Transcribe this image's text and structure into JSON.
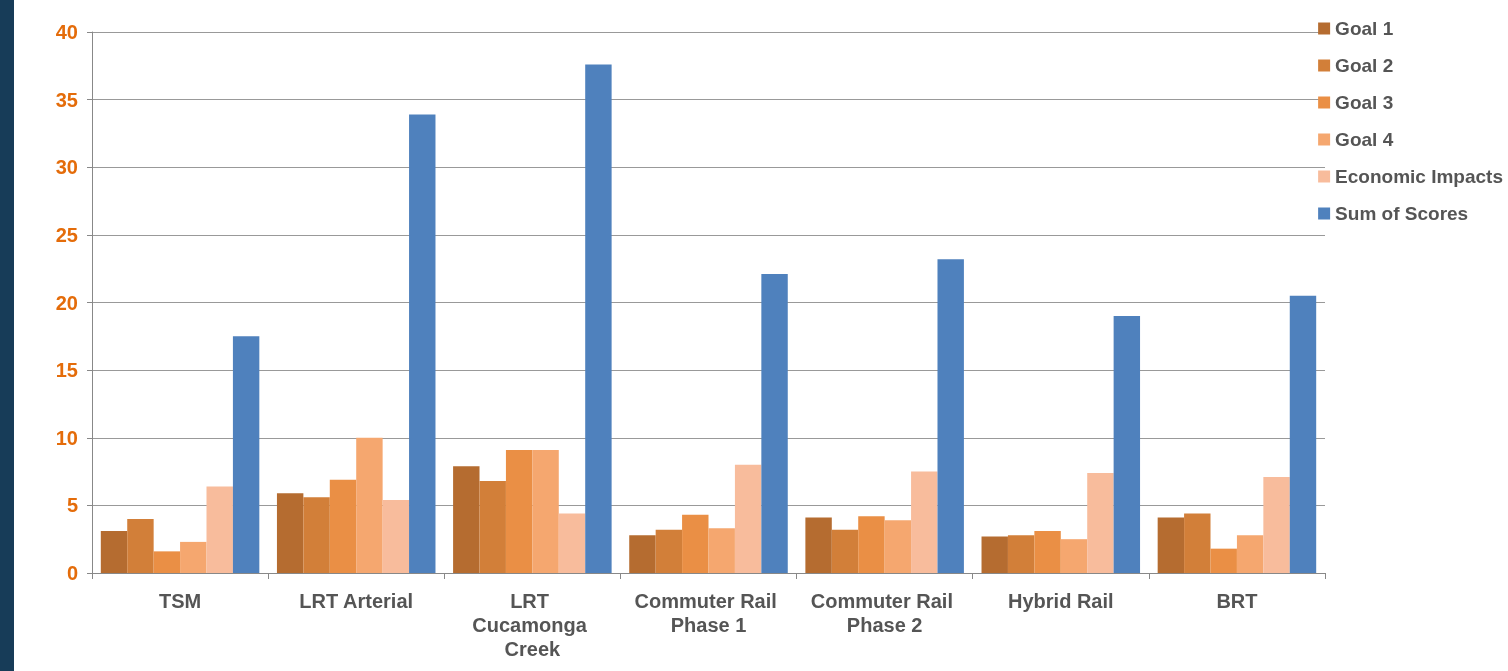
{
  "chart_data": {
    "type": "bar",
    "categories": [
      "TSM",
      "LRT Arterial",
      "LRT Cucamonga Creek",
      "Commuter Rail Phase 1",
      "Commuter Rail Phase 2",
      "Hybrid Rail",
      "BRT"
    ],
    "series": [
      {
        "name": "Goal 1",
        "color": "#b56c30",
        "values": [
          3.1,
          5.9,
          7.9,
          2.8,
          4.1,
          2.7,
          4.1
        ]
      },
      {
        "name": "Goal 2",
        "color": "#d27f39",
        "values": [
          4.0,
          5.6,
          6.8,
          3.2,
          3.2,
          2.8,
          4.4
        ]
      },
      {
        "name": "Goal 3",
        "color": "#ea8f45",
        "values": [
          1.6,
          6.9,
          9.1,
          4.3,
          4.2,
          3.1,
          1.8
        ]
      },
      {
        "name": "Goal 4",
        "color": "#f5a76f",
        "values": [
          2.3,
          10.0,
          9.1,
          3.3,
          3.9,
          2.5,
          2.8
        ]
      },
      {
        "name": "Economic Impacts",
        "color": "#f8bc9c",
        "values": [
          6.4,
          5.4,
          4.4,
          8.0,
          7.5,
          7.4,
          7.1
        ]
      },
      {
        "name": "Sum of Scores",
        "color": "#4f81bd",
        "values": [
          17.5,
          33.9,
          37.6,
          22.1,
          23.2,
          19.0,
          20.5
        ]
      }
    ],
    "ylim": [
      0,
      40
    ],
    "yticks": [
      0,
      5,
      10,
      15,
      20,
      25,
      30,
      35,
      40
    ],
    "grid": "y",
    "legend": "top right"
  }
}
